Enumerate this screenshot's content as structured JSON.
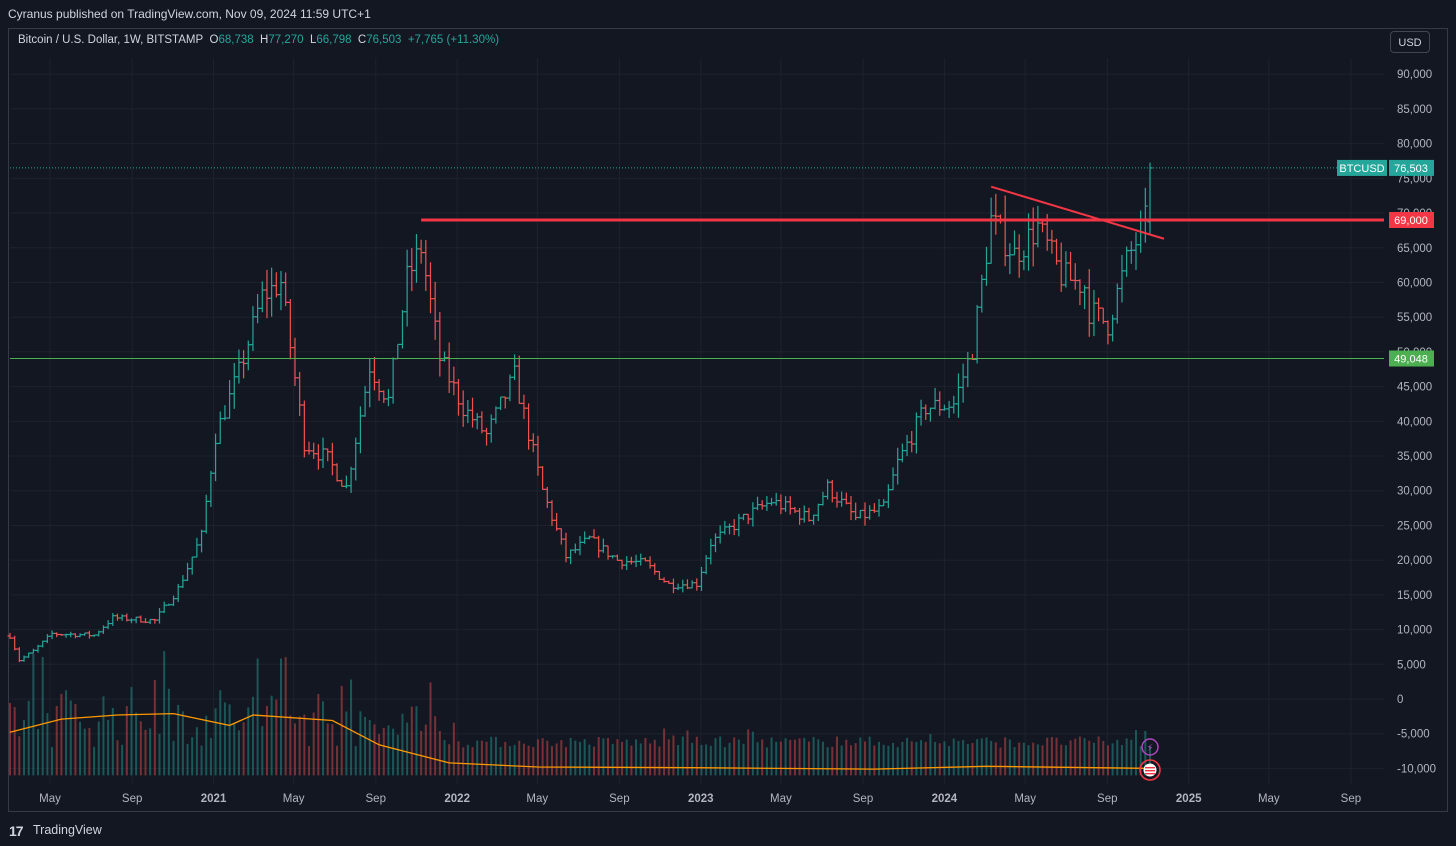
{
  "header": {
    "published": "Cyranus published on TradingView.com, Nov 09, 2024 11:59 UTC+1"
  },
  "legend": {
    "symbol": "Bitcoin / U.S. Dollar, 1W, BITSTAMP",
    "o_label": "O",
    "o": "68,738",
    "h_label": "H",
    "h": "77,270",
    "l_label": "L",
    "l": "66,798",
    "c_label": "C",
    "c": "76,503",
    "change": "+7,765 (+11.30%)"
  },
  "currency_button": "USD",
  "footer": {
    "logo": "17",
    "brand": "TradingView"
  },
  "colors": {
    "background": "#131722",
    "up": "#26a69a",
    "down": "#ef5350",
    "resistance": "#f23645",
    "support": "#4caf50",
    "volume_ma": "#ff9800"
  },
  "chart_data": {
    "type": "ohlc",
    "title": "Bitcoin / U.S. Dollar, 1W, BITSTAMP",
    "ylim": [
      -12000,
      95000
    ],
    "y_ticks": [
      "90,000",
      "85,000",
      "80,000",
      "75,000",
      "70,000",
      "65,000",
      "60,000",
      "55,000",
      "50,000",
      "45,000",
      "40,000",
      "35,000",
      "30,000",
      "25,000",
      "20,000",
      "15,000",
      "10,000",
      "5,000",
      "0",
      "-5,000",
      "-10,000"
    ],
    "x_ticks": [
      "May",
      "Sep",
      "2021",
      "May",
      "Sep",
      "2022",
      "May",
      "Sep",
      "2023",
      "May",
      "Sep",
      "2024",
      "May",
      "Sep",
      "2025",
      "May",
      "Sep"
    ],
    "price_labels": [
      {
        "name": "BTCUSD",
        "value": "76,503"
      },
      {
        "name": "",
        "value": "69,000"
      },
      {
        "name": "",
        "value": "49,048"
      }
    ],
    "horizontal_lines": [
      {
        "name": "resistance",
        "value": 69000
      },
      {
        "name": "support",
        "value": 49048
      }
    ],
    "trendline": [
      {
        "date": "2024-03-11",
        "value": 73800
      },
      {
        "date": "2024-11-25",
        "value": 66300
      }
    ],
    "closes": [
      {
        "date": "2020-03-02",
        "value": 9100
      },
      {
        "date": "2020-03-16",
        "value": 5600
      },
      {
        "date": "2020-04-06",
        "value": 6900
      },
      {
        "date": "2020-05-04",
        "value": 9400
      },
      {
        "date": "2020-07-06",
        "value": 9200
      },
      {
        "date": "2020-08-03",
        "value": 11700
      },
      {
        "date": "2020-10-05",
        "value": 11300
      },
      {
        "date": "2020-11-09",
        "value": 15900
      },
      {
        "date": "2020-12-14",
        "value": 23500
      },
      {
        "date": "2021-01-04",
        "value": 38000
      },
      {
        "date": "2021-02-08",
        "value": 47000
      },
      {
        "date": "2021-03-15",
        "value": 58000
      },
      {
        "date": "2021-04-12",
        "value": 60000
      },
      {
        "date": "2021-05-17",
        "value": 37000
      },
      {
        "date": "2021-06-21",
        "value": 34500
      },
      {
        "date": "2021-07-19",
        "value": 30500
      },
      {
        "date": "2021-08-23",
        "value": 48000
      },
      {
        "date": "2021-09-20",
        "value": 43000
      },
      {
        "date": "2021-10-18",
        "value": 60500
      },
      {
        "date": "2021-11-08",
        "value": 65000
      },
      {
        "date": "2021-12-06",
        "value": 49000
      },
      {
        "date": "2022-01-10",
        "value": 42000
      },
      {
        "date": "2022-02-14",
        "value": 38000
      },
      {
        "date": "2022-03-28",
        "value": 46500
      },
      {
        "date": "2022-05-09",
        "value": 30000
      },
      {
        "date": "2022-06-13",
        "value": 20500
      },
      {
        "date": "2022-07-18",
        "value": 23000
      },
      {
        "date": "2022-08-29",
        "value": 20000
      },
      {
        "date": "2022-10-10",
        "value": 19500
      },
      {
        "date": "2022-11-14",
        "value": 16500
      },
      {
        "date": "2022-12-26",
        "value": 16600
      },
      {
        "date": "2023-01-16",
        "value": 22500
      },
      {
        "date": "2023-03-13",
        "value": 26500
      },
      {
        "date": "2023-04-17",
        "value": 28500
      },
      {
        "date": "2023-06-12",
        "value": 26000
      },
      {
        "date": "2023-07-10",
        "value": 30500
      },
      {
        "date": "2023-08-21",
        "value": 26000
      },
      {
        "date": "2023-10-02",
        "value": 27500
      },
      {
        "date": "2023-10-23",
        "value": 34000
      },
      {
        "date": "2023-12-04",
        "value": 42000
      },
      {
        "date": "2024-01-15",
        "value": 42500
      },
      {
        "date": "2024-02-12",
        "value": 50500
      },
      {
        "date": "2024-03-11",
        "value": 69000
      },
      {
        "date": "2024-04-15",
        "value": 64000
      },
      {
        "date": "2024-05-20",
        "value": 68000
      },
      {
        "date": "2024-06-24",
        "value": 61000
      },
      {
        "date": "2024-07-29",
        "value": 59500
      },
      {
        "date": "2024-08-05",
        "value": 56000
      },
      {
        "date": "2024-09-02",
        "value": 54000
      },
      {
        "date": "2024-09-30",
        "value": 63000
      },
      {
        "date": "2024-10-28",
        "value": 68738
      },
      {
        "date": "2024-11-04",
        "value": 76503
      }
    ],
    "volume_ma": [
      {
        "date": "2020-03-02",
        "value": -4800
      },
      {
        "date": "2020-05-18",
        "value": -2900
      },
      {
        "date": "2020-08-10",
        "value": -2300
      },
      {
        "date": "2020-11-02",
        "value": -2100
      },
      {
        "date": "2021-01-25",
        "value": -3800
      },
      {
        "date": "2021-03-01",
        "value": -2300
      },
      {
        "date": "2021-06-28",
        "value": -3100
      },
      {
        "date": "2021-09-06",
        "value": -6600
      },
      {
        "date": "2021-12-20",
        "value": -9200
      },
      {
        "date": "2022-05-02",
        "value": -9800
      },
      {
        "date": "2022-12-19",
        "value": -9900
      },
      {
        "date": "2023-09-18",
        "value": -10100
      },
      {
        "date": "2024-03-04",
        "value": -9700
      },
      {
        "date": "2024-11-04",
        "value": -10000
      }
    ]
  }
}
